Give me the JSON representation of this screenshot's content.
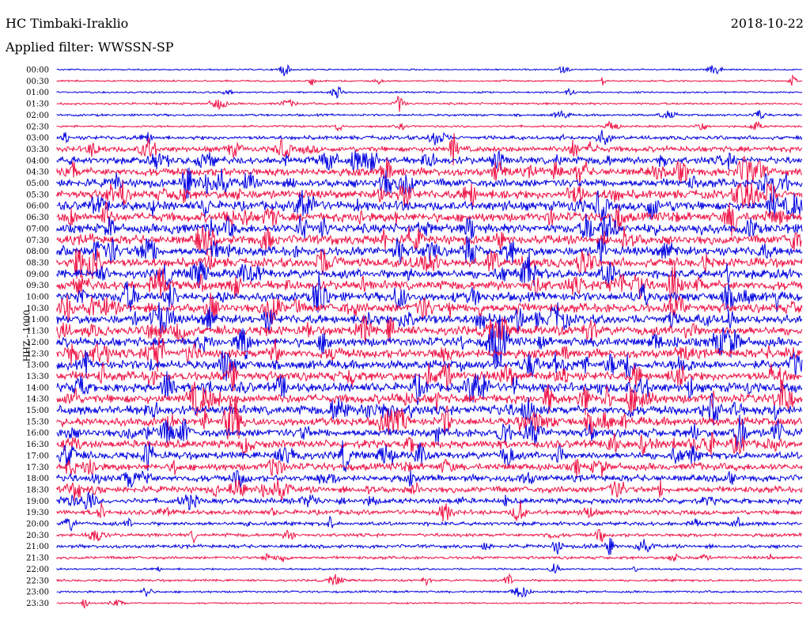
{
  "header": {
    "station": "HC Timbaki-Iraklio",
    "date": "2018-10-22",
    "filter": "Applied filter: WWSSN-SP"
  },
  "channel_label": "HHZ - 1000",
  "chart_data": {
    "type": "line",
    "subtype": "helicorder",
    "rows": [
      {
        "label": "00:00",
        "color": "#0000e0",
        "activity": 0.05
      },
      {
        "label": "00:30",
        "color": "#ee1144",
        "activity": 0.06
      },
      {
        "label": "01:00",
        "color": "#0000e0",
        "activity": 0.07
      },
      {
        "label": "01:30",
        "color": "#ee1144",
        "activity": 0.12
      },
      {
        "label": "02:00",
        "color": "#0000e0",
        "activity": 0.14
      },
      {
        "label": "02:30",
        "color": "#ee1144",
        "activity": 0.12
      },
      {
        "label": "03:00",
        "color": "#0000e0",
        "activity": 0.35
      },
      {
        "label": "03:30",
        "color": "#ee1144",
        "activity": 0.55
      },
      {
        "label": "04:00",
        "color": "#0000e0",
        "activity": 0.75
      },
      {
        "label": "04:30",
        "color": "#ee1144",
        "activity": 0.85
      },
      {
        "label": "05:00",
        "color": "#0000e0",
        "activity": 0.9
      },
      {
        "label": "05:30",
        "color": "#ee1144",
        "activity": 0.95
      },
      {
        "label": "06:00",
        "color": "#0000e0",
        "activity": 1.0
      },
      {
        "label": "06:30",
        "color": "#ee1144",
        "activity": 1.0
      },
      {
        "label": "07:00",
        "color": "#0000e0",
        "activity": 1.0
      },
      {
        "label": "07:30",
        "color": "#ee1144",
        "activity": 1.0
      },
      {
        "label": "08:00",
        "color": "#0000e0",
        "activity": 1.0
      },
      {
        "label": "08:30",
        "color": "#ee1144",
        "activity": 1.0
      },
      {
        "label": "09:00",
        "color": "#0000e0",
        "activity": 1.0
      },
      {
        "label": "09:30",
        "color": "#ee1144",
        "activity": 1.0
      },
      {
        "label": "10:00",
        "color": "#0000e0",
        "activity": 1.0
      },
      {
        "label": "10:30",
        "color": "#ee1144",
        "activity": 1.0
      },
      {
        "label": "11:00",
        "color": "#0000e0",
        "activity": 1.0
      },
      {
        "label": "11:30",
        "color": "#ee1144",
        "activity": 1.0
      },
      {
        "label": "12:00",
        "color": "#0000e0",
        "activity": 1.0
      },
      {
        "label": "12:30",
        "color": "#ee1144",
        "activity": 1.0
      },
      {
        "label": "13:00",
        "color": "#0000e0",
        "activity": 1.0
      },
      {
        "label": "13:30",
        "color": "#ee1144",
        "activity": 1.0
      },
      {
        "label": "14:00",
        "color": "#0000e0",
        "activity": 1.0
      },
      {
        "label": "14:30",
        "color": "#ee1144",
        "activity": 1.0
      },
      {
        "label": "15:00",
        "color": "#0000e0",
        "activity": 1.0
      },
      {
        "label": "15:30",
        "color": "#ee1144",
        "activity": 0.95
      },
      {
        "label": "16:00",
        "color": "#0000e0",
        "activity": 0.9
      },
      {
        "label": "16:30",
        "color": "#ee1144",
        "activity": 0.85
      },
      {
        "label": "17:00",
        "color": "#0000e0",
        "activity": 0.8
      },
      {
        "label": "17:30",
        "color": "#ee1144",
        "activity": 0.75
      },
      {
        "label": "18:00",
        "color": "#0000e0",
        "activity": 0.7
      },
      {
        "label": "18:30",
        "color": "#ee1144",
        "activity": 0.65
      },
      {
        "label": "19:00",
        "color": "#0000e0",
        "activity": 0.55
      },
      {
        "label": "19:30",
        "color": "#ee1144",
        "activity": 0.45
      },
      {
        "label": "20:00",
        "color": "#0000e0",
        "activity": 0.35
      },
      {
        "label": "20:30",
        "color": "#ee1144",
        "activity": 0.28
      },
      {
        "label": "21:00",
        "color": "#0000e0",
        "activity": 0.3
      },
      {
        "label": "21:30",
        "color": "#ee1144",
        "activity": 0.22
      },
      {
        "label": "22:00",
        "color": "#0000e0",
        "activity": 0.1
      },
      {
        "label": "22:30",
        "color": "#ee1144",
        "activity": 0.14
      },
      {
        "label": "23:00",
        "color": "#0000e0",
        "activity": 0.12
      },
      {
        "label": "23:30",
        "color": "#ee1144",
        "activity": 0.05
      }
    ]
  }
}
